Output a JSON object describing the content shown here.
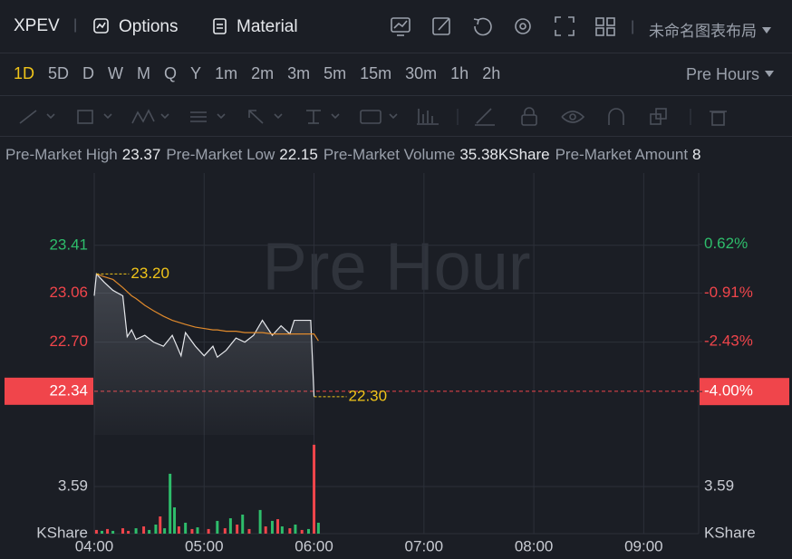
{
  "toolbar": {
    "symbol": "XPEV",
    "options": "Options",
    "material": "Material",
    "layout": "未命名图表布局"
  },
  "timeframes": [
    "1D",
    "5D",
    "D",
    "W",
    "M",
    "Q",
    "Y",
    "1m",
    "2m",
    "3m",
    "5m",
    "15m",
    "30m",
    "1h",
    "2h"
  ],
  "session": "Pre Hours",
  "stats": [
    {
      "label": "Pre-Market High",
      "value": "23.37"
    },
    {
      "label": "Pre-Market Low",
      "value": "22.15"
    },
    {
      "label": "Pre-Market Volume",
      "value": "35.38KShare"
    },
    {
      "label": "Pre-Market Amount",
      "value": "8"
    }
  ],
  "chart_data": {
    "type": "line",
    "watermark": "Pre Hour",
    "up_color": "#2ebd6b",
    "down_color": "#f0454b",
    "x": [
      4.0,
      4.02,
      4.09,
      4.17,
      4.26,
      4.3,
      4.34,
      4.38,
      4.46,
      4.54,
      4.63,
      4.71,
      4.79,
      4.83,
      4.92,
      5.0,
      5.08,
      5.12,
      5.2,
      5.29,
      5.37,
      5.45,
      5.53,
      5.62,
      5.7,
      5.78,
      5.82,
      5.9,
      5.97,
      6.0,
      6.04
    ],
    "xlim": [
      4,
      9.5
    ],
    "xticks": [
      {
        "value": 4,
        "label": "04:00"
      },
      {
        "value": 5,
        "label": "05:00"
      },
      {
        "value": 6,
        "label": "06:00"
      },
      {
        "value": 7,
        "label": "07:00"
      },
      {
        "value": 8,
        "label": "08:00"
      },
      {
        "value": 9,
        "label": "09:00"
      }
    ],
    "ylim": [
      22.02,
      23.94
    ],
    "yticks": [
      22.34,
      {
        "value": 22.7,
        "label": "22.70"
      },
      23.06,
      23.41
    ],
    "y2lim": [
      -5.36,
      2.86
    ],
    "y2ticks": [
      {
        "value": -4,
        "label": "-4.00%"
      },
      {
        "value": -2.43,
        "label": "-2.43%"
      },
      {
        "value": -0.91,
        "label": "-0.91%"
      },
      {
        "value": 0.62,
        "label": "0.62%"
      }
    ],
    "series": [
      {
        "color": "#e6e8ec",
        "values": [
          23.04,
          23.2,
          23.14,
          23.08,
          23.04,
          22.74,
          22.79,
          22.72,
          22.75,
          22.7,
          22.67,
          22.75,
          22.6,
          22.77,
          22.67,
          22.6,
          22.67,
          22.59,
          22.64,
          22.73,
          22.7,
          22.75,
          22.86,
          22.75,
          22.82,
          22.76,
          22.86,
          22.86,
          22.86,
          22.3,
          null
        ]
      },
      {
        "color": "#e08a2c",
        "values": [
          null,
          23.2,
          23.18,
          23.16,
          23.1,
          23.07,
          23.04,
          23.02,
          22.97,
          22.93,
          22.89,
          22.86,
          22.84,
          22.83,
          22.81,
          22.8,
          22.79,
          22.79,
          22.78,
          22.78,
          22.77,
          22.77,
          22.77,
          22.76,
          22.76,
          22.76,
          22.76,
          22.76,
          22.76,
          22.76,
          22.71
        ]
      }
    ],
    "annotations": [
      {
        "label": "23.20",
        "x": 4.02,
        "value": 23.2
      },
      {
        "label": "22.30",
        "x": 6.0,
        "value": 22.3
      }
    ],
    "volume": {
      "x": [
        4.02,
        4.07,
        4.12,
        4.17,
        4.26,
        4.31,
        4.38,
        4.45,
        4.5,
        4.56,
        4.6,
        4.64,
        4.69,
        4.73,
        4.77,
        4.83,
        4.89,
        4.94,
        5.04,
        5.12,
        5.19,
        5.24,
        5.3,
        5.35,
        5.41,
        5.51,
        5.56,
        5.62,
        5.67,
        5.71,
        5.78,
        5.83,
        5.89,
        5.95,
        6.0,
        6.04
      ],
      "values": [
        0.28,
        0.21,
        0.35,
        0.21,
        0.41,
        0.21,
        0.41,
        0.55,
        0.28,
        0.69,
        1.31,
        0.41,
        4.56,
        2.0,
        0.55,
        0.83,
        0.35,
        0.48,
        0.35,
        0.97,
        0.41,
        1.17,
        0.69,
        1.45,
        0.35,
        1.8,
        0.55,
        0.97,
        1.1,
        0.55,
        0.41,
        0.69,
        0.28,
        0.35,
        6.77,
        0.83
      ],
      "colors": [
        "#f0454b",
        "#2ebd6b",
        "#f0454b",
        "#2ebd6b",
        "#f0454b",
        "#f0454b",
        "#2ebd6b",
        "#f0454b",
        "#2ebd6b",
        "#2ebd6b",
        "#f0454b",
        "#2ebd6b",
        "#2ebd6b",
        "#2ebd6b",
        "#f0454b",
        "#2ebd6b",
        "#f0454b",
        "#2ebd6b",
        "#f0454b",
        "#2ebd6b",
        "#f0454b",
        "#2ebd6b",
        "#f0454b",
        "#2ebd6b",
        "#f0454b",
        "#2ebd6b",
        "#f0454b",
        "#2ebd6b",
        "#f0454b",
        "#2ebd6b",
        "#f0454b",
        "#2ebd6b",
        "#f0454b",
        "#2ebd6b",
        "#f0454b",
        "#2ebd6b"
      ],
      "ylim": [
        0,
        7.52
      ],
      "yticks": [
        {
          "value": 0,
          "label": "KShare"
        },
        3.59
      ]
    }
  }
}
